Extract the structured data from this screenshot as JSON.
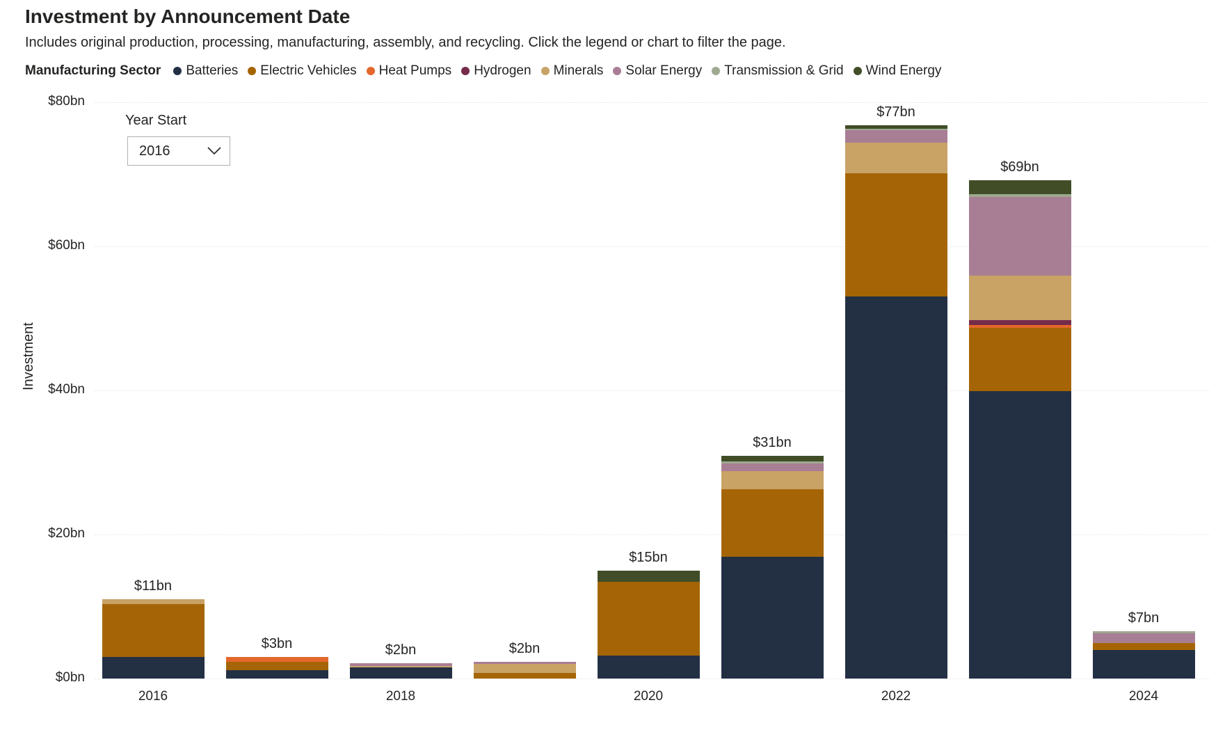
{
  "title": "Investment by Announcement Date",
  "subtitle": "Includes original production, processing, manufacturing, assembly, and recycling. Click the legend or chart to filter the page.",
  "legend": {
    "title": "Manufacturing Sector",
    "items": [
      {
        "label": "Batteries",
        "color": "#233044"
      },
      {
        "label": "Electric Vehicles",
        "color": "#A56506"
      },
      {
        "label": "Heat Pumps",
        "color": "#E5672B"
      },
      {
        "label": "Hydrogen",
        "color": "#752B4A"
      },
      {
        "label": "Minerals",
        "color": "#C9A266"
      },
      {
        "label": "Solar Energy",
        "color": "#A87E95"
      },
      {
        "label": "Transmission & Grid",
        "color": "#9EA98F"
      },
      {
        "label": "Wind Energy",
        "color": "#404D27"
      }
    ]
  },
  "slicer": {
    "label": "Year Start",
    "value": "2016",
    "chevron_icon": "chevron-down"
  },
  "y_axis": {
    "title": "Investment",
    "ticks": [
      {
        "label": "$80bn",
        "value": 80
      },
      {
        "label": "$60bn",
        "value": 60
      },
      {
        "label": "$40bn",
        "value": 40
      },
      {
        "label": "$20bn",
        "value": 20
      },
      {
        "label": "$0bn",
        "value": 0
      }
    ]
  },
  "x_axis": {
    "tick_labels": [
      "2016",
      "2018",
      "2020",
      "2022",
      "2024"
    ]
  },
  "chart_data": {
    "type": "bar",
    "stacked": true,
    "title": "Investment by Announcement Date",
    "xlabel": "",
    "ylabel": "Investment",
    "ylim": [
      0,
      80
    ],
    "grid": "horizontal-dotted",
    "legend_position": "top",
    "categories": [
      "2016",
      "2017",
      "2018",
      "2019",
      "2020",
      "2021",
      "2022",
      "2023",
      "2024"
    ],
    "totals_labels": [
      "$11bn",
      "$3bn",
      "$2bn",
      "$2bn",
      "$15bn",
      "$31bn",
      "$77bn",
      "$69bn",
      "$7bn"
    ],
    "totals_bn": [
      11,
      3,
      2,
      2,
      15,
      31,
      77,
      69,
      7
    ],
    "series": [
      {
        "name": "Batteries",
        "color": "#233044",
        "values": [
          3.0,
          1.2,
          1.5,
          0,
          3.2,
          16.9,
          53.0,
          39.9,
          4.0
        ]
      },
      {
        "name": "Electric Vehicles",
        "color": "#A56506",
        "values": [
          7.3,
          1.1,
          0,
          0.8,
          10.2,
          9.4,
          17.1,
          8.8,
          0.9
        ]
      },
      {
        "name": "Heat Pumps",
        "color": "#E5672B",
        "values": [
          0,
          0.7,
          0,
          0,
          0,
          0,
          0,
          0.4,
          0
        ]
      },
      {
        "name": "Hydrogen",
        "color": "#752B4A",
        "values": [
          0,
          0,
          0,
          0,
          0,
          0,
          0,
          0.7,
          0
        ]
      },
      {
        "name": "Minerals",
        "color": "#C9A266",
        "values": [
          0.7,
          0,
          0.2,
          1.2,
          0,
          2.5,
          4.3,
          6.1,
          0
        ]
      },
      {
        "name": "Solar Energy",
        "color": "#A87E95",
        "values": [
          0,
          0,
          0.4,
          0.3,
          0,
          1.1,
          1.7,
          11.0,
          1.4
        ]
      },
      {
        "name": "Transmission & Grid",
        "color": "#9EA98F",
        "values": [
          0,
          0,
          0,
          0,
          0,
          0.2,
          0.25,
          0.3,
          0.3
        ]
      },
      {
        "name": "Wind Energy",
        "color": "#404D27",
        "values": [
          0,
          0,
          0,
          0,
          1.6,
          0.8,
          0.45,
          2.0,
          0
        ]
      }
    ]
  }
}
